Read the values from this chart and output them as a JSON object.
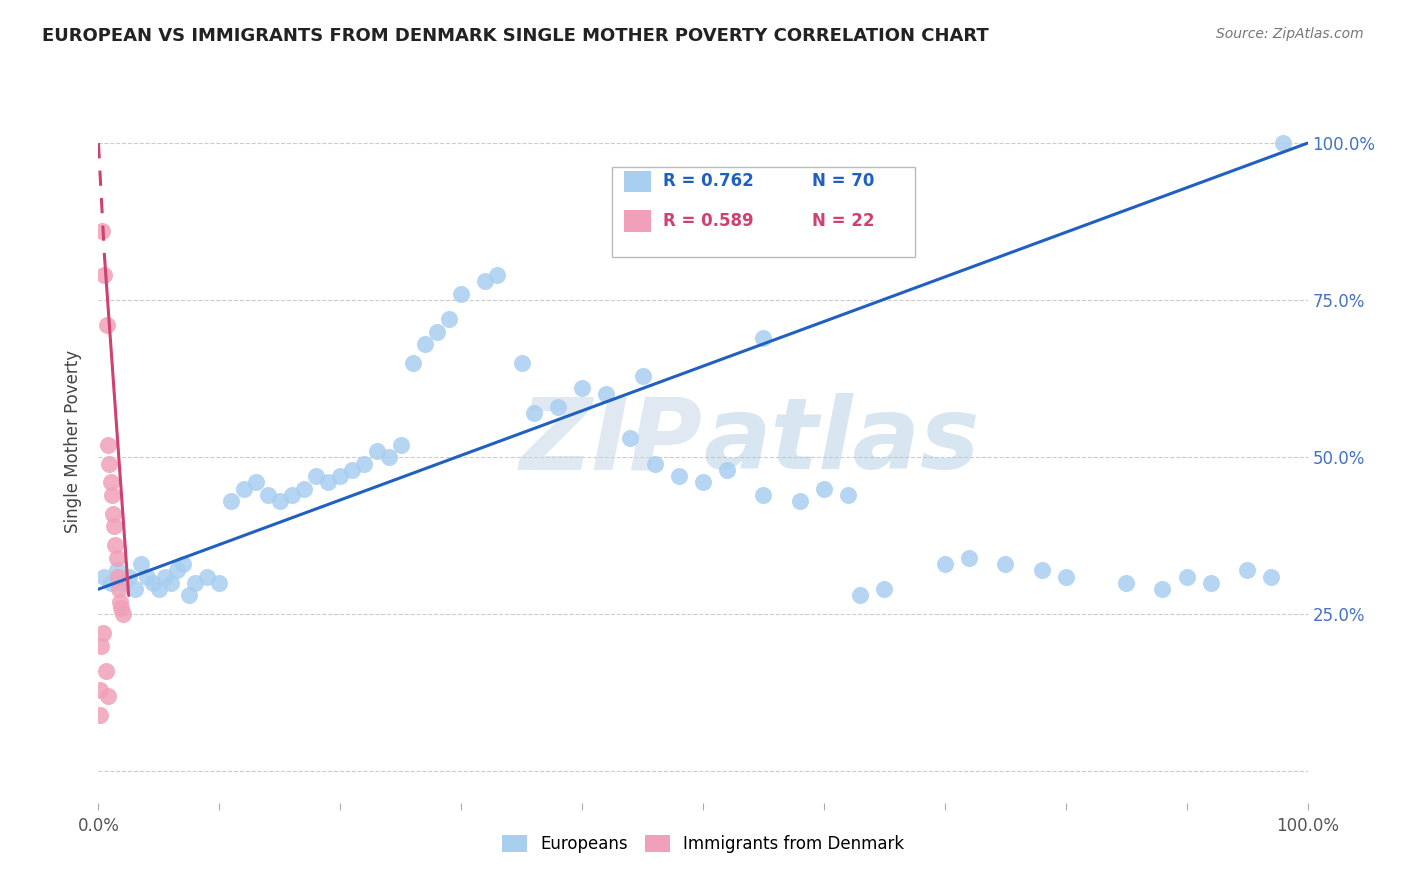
{
  "title": "EUROPEAN VS IMMIGRANTS FROM DENMARK SINGLE MOTHER POVERTY CORRELATION CHART",
  "source": "Source: ZipAtlas.com",
  "ylabel": "Single Mother Poverty",
  "watermark_zip": "ZIP",
  "watermark_atlas": "atlas",
  "legend_blue_r": "R = 0.762",
  "legend_blue_n": "N = 70",
  "legend_pink_r": "R = 0.589",
  "legend_pink_n": "N = 22",
  "blue_color": "#a8cef0",
  "pink_color": "#f0a0b8",
  "blue_line_color": "#2060c0",
  "pink_line_color": "#d04070",
  "background_color": "#ffffff",
  "grid_color": "#cccccc",
  "blue_scatter": [
    [
      0.5,
      31
    ],
    [
      1.0,
      30
    ],
    [
      1.5,
      32
    ],
    [
      2.0,
      30
    ],
    [
      2.5,
      31
    ],
    [
      3.0,
      29
    ],
    [
      3.5,
      33
    ],
    [
      4.0,
      31
    ],
    [
      4.5,
      30
    ],
    [
      5.0,
      29
    ],
    [
      5.5,
      31
    ],
    [
      6.0,
      30
    ],
    [
      6.5,
      32
    ],
    [
      7.0,
      33
    ],
    [
      7.5,
      28
    ],
    [
      8.0,
      30
    ],
    [
      9.0,
      31
    ],
    [
      10.0,
      30
    ],
    [
      11.0,
      43
    ],
    [
      12.0,
      45
    ],
    [
      13.0,
      46
    ],
    [
      14.0,
      44
    ],
    [
      15.0,
      43
    ],
    [
      16.0,
      44
    ],
    [
      17.0,
      45
    ],
    [
      18.0,
      47
    ],
    [
      19.0,
      46
    ],
    [
      20.0,
      47
    ],
    [
      21.0,
      48
    ],
    [
      22.0,
      49
    ],
    [
      23.0,
      51
    ],
    [
      24.0,
      50
    ],
    [
      25.0,
      52
    ],
    [
      26.0,
      65
    ],
    [
      27.0,
      68
    ],
    [
      28.0,
      70
    ],
    [
      29.0,
      72
    ],
    [
      30.0,
      76
    ],
    [
      32.0,
      78
    ],
    [
      33.0,
      79
    ],
    [
      35.0,
      65
    ],
    [
      36.0,
      57
    ],
    [
      38.0,
      58
    ],
    [
      40.0,
      61
    ],
    [
      42.0,
      60
    ],
    [
      44.0,
      53
    ],
    [
      46.0,
      49
    ],
    [
      48.0,
      47
    ],
    [
      50.0,
      46
    ],
    [
      52.0,
      48
    ],
    [
      55.0,
      44
    ],
    [
      58.0,
      43
    ],
    [
      60.0,
      45
    ],
    [
      62.0,
      44
    ],
    [
      63.0,
      28
    ],
    [
      65.0,
      29
    ],
    [
      70.0,
      33
    ],
    [
      72.0,
      34
    ],
    [
      75.0,
      33
    ],
    [
      78.0,
      32
    ],
    [
      80.0,
      31
    ],
    [
      85.0,
      30
    ],
    [
      88.0,
      29
    ],
    [
      90.0,
      31
    ],
    [
      92.0,
      30
    ],
    [
      95.0,
      32
    ],
    [
      97.0,
      31
    ],
    [
      98.0,
      100
    ],
    [
      45.0,
      63
    ],
    [
      55.0,
      69
    ]
  ],
  "pink_scatter": [
    [
      0.3,
      86
    ],
    [
      0.5,
      79
    ],
    [
      0.7,
      71
    ],
    [
      0.8,
      52
    ],
    [
      0.9,
      49
    ],
    [
      1.0,
      46
    ],
    [
      1.1,
      44
    ],
    [
      1.2,
      41
    ],
    [
      1.3,
      39
    ],
    [
      1.4,
      36
    ],
    [
      1.5,
      34
    ],
    [
      1.6,
      31
    ],
    [
      1.7,
      29
    ],
    [
      1.8,
      27
    ],
    [
      1.9,
      26
    ],
    [
      2.0,
      25
    ],
    [
      0.4,
      22
    ],
    [
      0.6,
      16
    ],
    [
      0.8,
      12
    ],
    [
      0.2,
      20
    ],
    [
      0.15,
      13
    ],
    [
      0.1,
      9
    ]
  ],
  "blue_line_pts": [
    [
      0,
      29
    ],
    [
      100,
      100
    ]
  ],
  "pink_line_pts": [
    [
      -0.5,
      100
    ],
    [
      2.5,
      28
    ]
  ],
  "xlim": [
    0,
    100
  ],
  "ylim": [
    -5,
    110
  ],
  "xticks": [
    0,
    10,
    20,
    30,
    40,
    50,
    60,
    70,
    80,
    90,
    100
  ],
  "yticks_right": [
    100,
    75,
    50,
    25
  ],
  "ytick_labels_right": [
    "100.0%",
    "75.0%",
    "50.0%",
    "25.0%"
  ]
}
